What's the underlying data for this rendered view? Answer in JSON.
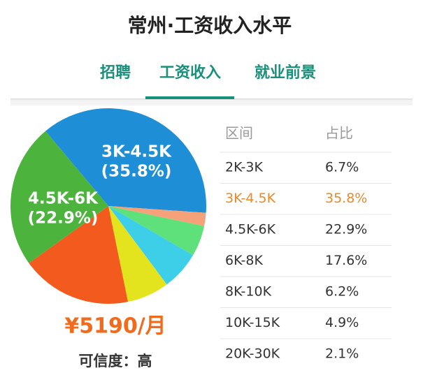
{
  "header": {
    "title": "常州·工资收入水平"
  },
  "tabs": [
    "招聘",
    "工资收入",
    "就业前景"
  ],
  "chart_data": {
    "type": "pie",
    "categories": [
      "3K-4.5K",
      null,
      null,
      null,
      null,
      null,
      "4.5K-6K"
    ],
    "values": [
      35.8,
      2.1,
      4.9,
      6.2,
      6.7,
      17.6,
      22.9
    ],
    "value_labels": [
      "(35.8%)",
      null,
      null,
      null,
      null,
      null,
      "(22.9%)"
    ],
    "colors": [
      "#1e8fd6",
      "#f5a27a",
      "#5ee07a",
      "#3ecfe8",
      "#e3e41e",
      "#f25a1e",
      "#4cb43c"
    ]
  },
  "table": {
    "columns": [
      "区间",
      "占比"
    ],
    "rows": [
      [
        "2K-3K",
        "6.7%"
      ],
      [
        "3K-4.5K",
        "35.8%"
      ],
      [
        "4.5K-6K",
        "22.9%"
      ],
      [
        "6K-8K",
        "17.6%"
      ],
      [
        "8K-10K",
        "6.2%"
      ],
      [
        "10K-15K",
        "4.9%"
      ],
      [
        "20K-30K",
        "2.1%"
      ]
    ]
  },
  "salary": "¥5190/月",
  "confidence": "可信度：高"
}
